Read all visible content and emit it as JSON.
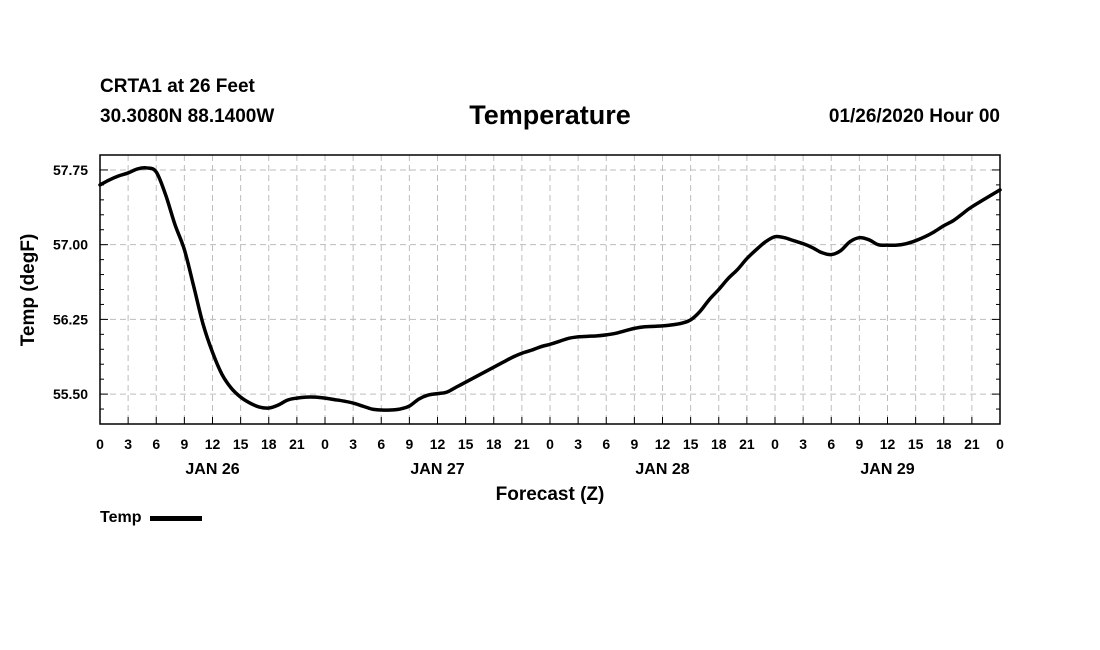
{
  "header": {
    "station": "CRTA1 at 26 Feet",
    "coords": "30.3080N 88.1400W",
    "title": "Temperature",
    "date": "01/26/2020 Hour 00"
  },
  "chart_data": {
    "type": "line",
    "title": "Temperature",
    "xlabel": "Forecast (Z)",
    "ylabel": "Temp (degF)",
    "xlim": [
      0,
      96
    ],
    "ylim": [
      55.2,
      57.9
    ],
    "grid": true,
    "legend_position": "bottom-left",
    "x_ticks": [
      0,
      3,
      6,
      9,
      12,
      15,
      18,
      21,
      24,
      27,
      30,
      33,
      36,
      39,
      42,
      45,
      48,
      51,
      54,
      57,
      60,
      63,
      66,
      69,
      72,
      75,
      78,
      81,
      84,
      87,
      90,
      93,
      96
    ],
    "x_tick_labels": [
      "0",
      "3",
      "6",
      "9",
      "12",
      "15",
      "18",
      "21",
      "0",
      "3",
      "6",
      "9",
      "12",
      "15",
      "18",
      "21",
      "0",
      "3",
      "6",
      "9",
      "12",
      "15",
      "18",
      "21",
      "0",
      "3",
      "6",
      "9",
      "12",
      "15",
      "18",
      "21",
      "0"
    ],
    "day_labels": [
      {
        "x": 12,
        "label": "JAN 26"
      },
      {
        "x": 36,
        "label": "JAN 27"
      },
      {
        "x": 60,
        "label": "JAN 28"
      },
      {
        "x": 84,
        "label": "JAN 29"
      }
    ],
    "y_ticks": [
      55.5,
      56.25,
      57.0,
      57.75
    ],
    "y_tick_labels": [
      "55.50",
      "56.25",
      "57.00",
      "57.75"
    ],
    "y_minor_step": 0.15,
    "series": [
      {
        "name": "Temp",
        "color": "#000000",
        "x": [
          0,
          1,
          2,
          3,
          4,
          5,
          6,
          7,
          8,
          9,
          10,
          11,
          12,
          13,
          14,
          15,
          16,
          17,
          18,
          19,
          20,
          21,
          22,
          23,
          24,
          25,
          26,
          27,
          28,
          29,
          30,
          31,
          32,
          33,
          34,
          35,
          36,
          37,
          38,
          39,
          40,
          41,
          42,
          43,
          44,
          45,
          46,
          47,
          48,
          49,
          50,
          51,
          52,
          53,
          54,
          55,
          56,
          57,
          58,
          59,
          60,
          61,
          62,
          63,
          64,
          65,
          66,
          67,
          68,
          69,
          70,
          71,
          72,
          73,
          74,
          75,
          76,
          77,
          78,
          79,
          80,
          81,
          82,
          83,
          84,
          85,
          86,
          87,
          88,
          89,
          90,
          91,
          92,
          93,
          96
        ],
        "y": [
          57.6,
          57.65,
          57.69,
          57.72,
          57.76,
          57.77,
          57.73,
          57.5,
          57.2,
          56.95,
          56.58,
          56.2,
          55.92,
          55.7,
          55.56,
          55.47,
          55.41,
          55.37,
          55.36,
          55.39,
          55.44,
          55.46,
          55.47,
          55.47,
          55.46,
          55.445,
          55.43,
          55.41,
          55.38,
          55.35,
          55.34,
          55.34,
          55.35,
          55.38,
          55.45,
          55.49,
          55.505,
          55.52,
          55.57,
          55.62,
          55.67,
          55.72,
          55.77,
          55.82,
          55.87,
          55.91,
          55.94,
          55.975,
          56.0,
          56.03,
          56.06,
          56.075,
          56.08,
          56.085,
          56.095,
          56.11,
          56.135,
          56.16,
          56.175,
          56.18,
          56.185,
          56.195,
          56.21,
          56.245,
          56.33,
          56.45,
          56.55,
          56.66,
          56.75,
          56.86,
          56.95,
          57.03,
          57.08,
          57.07,
          57.04,
          57.01,
          56.97,
          56.92,
          56.9,
          56.94,
          57.03,
          57.07,
          57.05,
          57.0,
          56.995,
          56.995,
          57.01,
          57.04,
          57.08,
          57.13,
          57.19,
          57.24,
          57.31,
          57.38,
          57.55
        ]
      }
    ]
  },
  "legend": {
    "label": "Temp",
    "swatch_color": "#000000"
  }
}
